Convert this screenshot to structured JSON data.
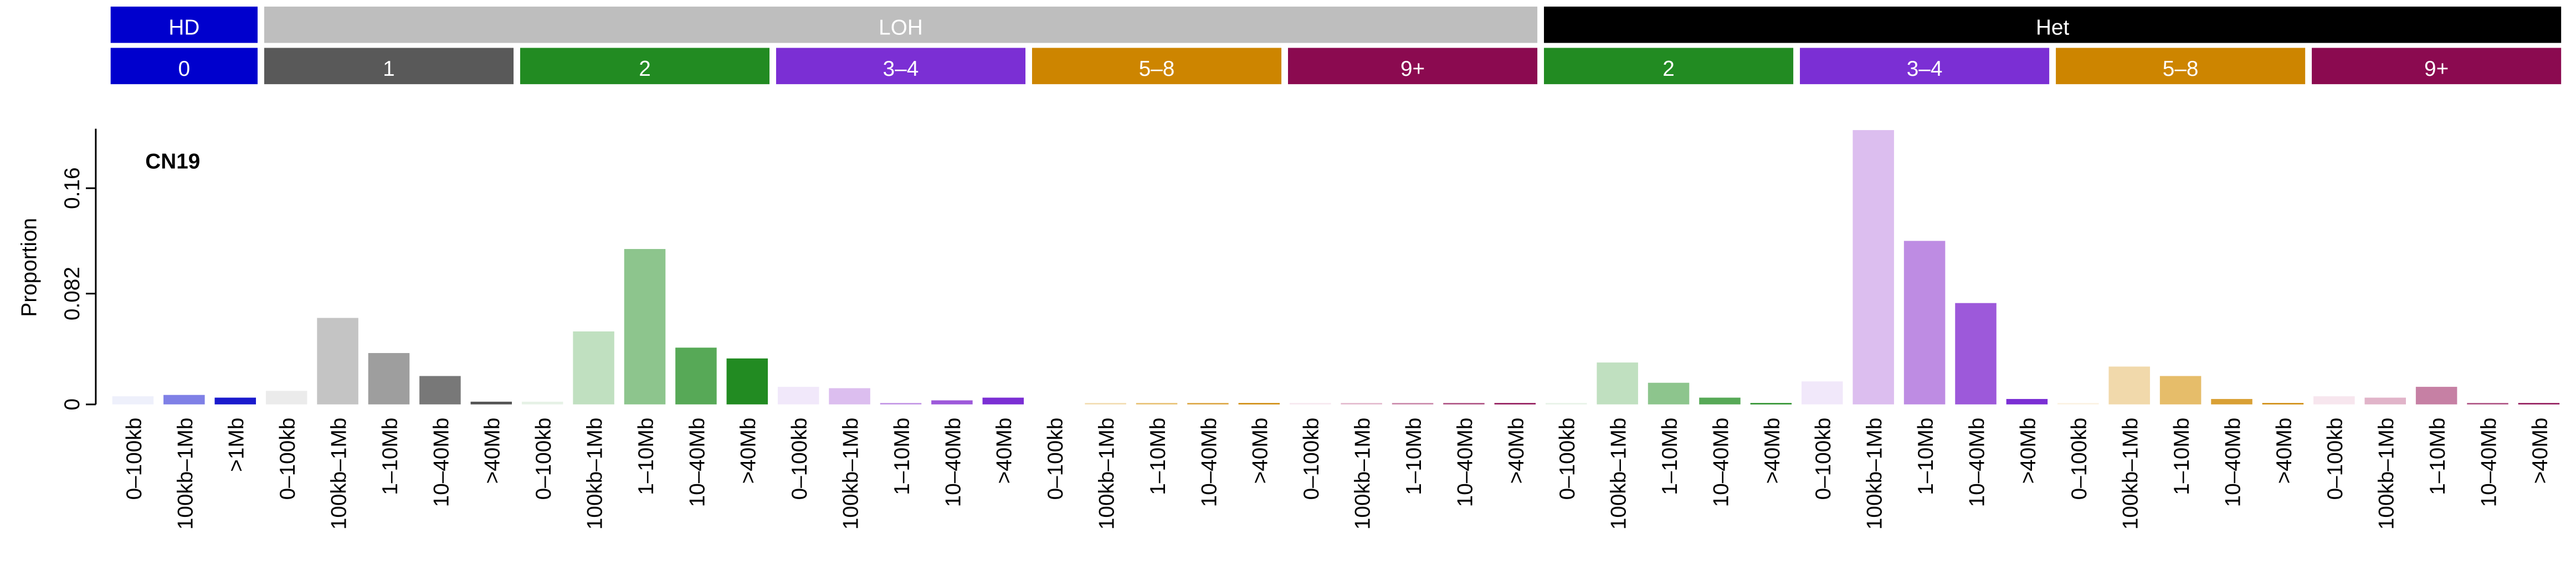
{
  "chart_data": {
    "type": "bar",
    "title": "CN19",
    "y_label": "Proportion",
    "state_groups": [
      {
        "label": "HD",
        "color": "#0000cd",
        "count": 3
      },
      {
        "label": "LOH",
        "color": "#bebebe",
        "count": 25
      },
      {
        "label": "Het",
        "color": "#000000",
        "count": 20
      }
    ],
    "cn_groups": [
      {
        "label": "0",
        "color": "#0000cd",
        "count": 3
      },
      {
        "label": "1",
        "color": "#595959",
        "count": 5
      },
      {
        "label": "2",
        "color": "#228b22",
        "count": 5
      },
      {
        "label": "3–4",
        "color": "#7b2fd4",
        "count": 5
      },
      {
        "label": "5–8",
        "color": "#cd8500",
        "count": 5
      },
      {
        "label": "9+",
        "color": "#8b0a50",
        "count": 5
      },
      {
        "label": "2",
        "color": "#228b22",
        "count": 5
      },
      {
        "label": "3–4",
        "color": "#7b2fd4",
        "count": 5
      },
      {
        "label": "5–8",
        "color": "#cd8500",
        "count": 5
      },
      {
        "label": "9+",
        "color": "#8b0a50",
        "count": 5
      }
    ],
    "categories": [
      "0–100kb",
      "100kb–1Mb",
      ">1Mb",
      "0–100kb",
      "100kb–1Mb",
      "1–10Mb",
      "10–40Mb",
      ">40Mb",
      "0–100kb",
      "100kb–1Mb",
      "1–10Mb",
      "10–40Mb",
      ">40Mb",
      "0–100kb",
      "100kb–1Mb",
      "1–10Mb",
      "10–40Mb",
      ">40Mb",
      "0–100kb",
      "100kb–1Mb",
      "1–10Mb",
      "10–40Mb",
      ">40Mb",
      "0–100kb",
      "100kb–1Mb",
      "1–10Mb",
      "10–40Mb",
      ">40Mb",
      "0–100kb",
      "100kb–1Mb",
      "1–10Mb",
      "10–40Mb",
      ">40Mb",
      "0–100kb",
      "100kb–1Mb",
      "1–10Mb",
      "10–40Mb",
      ">40Mb",
      "0–100kb",
      "100kb–1Mb",
      "1–10Mb",
      "10–40Mb",
      ">40Mb",
      "0–100kb",
      "100kb–1Mb",
      "1–10Mb",
      "10–40Mb",
      ">40Mb"
    ],
    "values": [
      0.006,
      0.007,
      0.005,
      0.01,
      0.064,
      0.038,
      0.021,
      0.002,
      0.002,
      0.054,
      0.115,
      0.042,
      0.034,
      0.013,
      0.012,
      0.001,
      0.003,
      0.005,
      0,
      0.001,
      0.001,
      0.001,
      0.001,
      0.001,
      0.001,
      0.001,
      0.001,
      0.001,
      0.001,
      0.031,
      0.016,
      0.005,
      0.001,
      0.017,
      0.203,
      0.121,
      0.075,
      0.004,
      0.001,
      0.028,
      0.021,
      0.004,
      0.001,
      0.006,
      0.005,
      0.013,
      0.001,
      0.001
    ],
    "colors": [
      "#eef0fb",
      "#7f80e6",
      "#1a1acd",
      "#ebebeb",
      "#c4c4c4",
      "#9e9e9e",
      "#787878",
      "#555555",
      "#e6f2e6",
      "#c0e0c0",
      "#8dc58d",
      "#57a957",
      "#228b22",
      "#f1e8fa",
      "#dcbeef",
      "#be8ce3",
      "#9d59da",
      "#7b2fd4",
      "#fbf1e0",
      "#f1d9ab",
      "#e6bd6a",
      "#d9a035",
      "#cd8500",
      "#f7e6ee",
      "#e1b4c9",
      "#c680a4",
      "#a8457a",
      "#8b0a50",
      "#e6f2e6",
      "#c0e0c0",
      "#8dc58d",
      "#57a957",
      "#228b22",
      "#f1e8fa",
      "#dcbeef",
      "#be8ce3",
      "#9d59da",
      "#7b2fd4",
      "#fbf1e0",
      "#f1d9ab",
      "#e6bd6a",
      "#d9a035",
      "#cd8500",
      "#f7e6ee",
      "#e1b4c9",
      "#c680a4",
      "#a8457a",
      "#8b0a50"
    ],
    "ylim": [
      0,
      0.204
    ],
    "yticks": [
      0,
      0.082,
      0.16
    ]
  }
}
